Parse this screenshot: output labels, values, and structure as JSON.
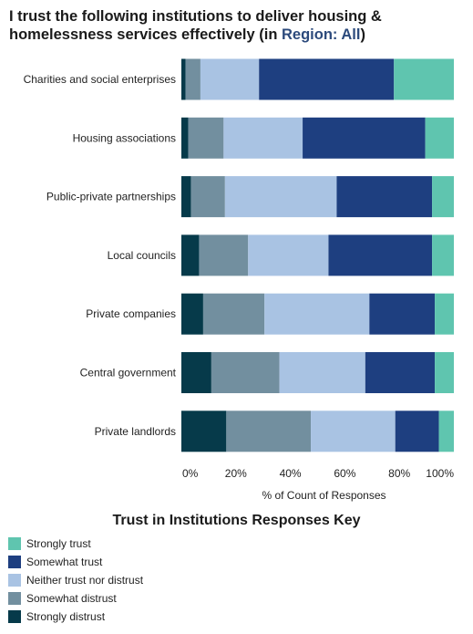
{
  "title": {
    "line1": "I trust the following institutions to deliver housing &",
    "line2_prefix": "homelessness services effectively (in ",
    "line2_region": "Region: All",
    "line2_suffix": ")"
  },
  "chart_data": {
    "type": "bar",
    "orientation": "horizontal",
    "stacked": "100%",
    "xlabel": "% of Count of Responses",
    "xlim": [
      0,
      100
    ],
    "x_ticks": [
      "0%",
      "20%",
      "40%",
      "60%",
      "80%",
      "100%"
    ],
    "categories": [
      "Charities and social enterprises",
      "Housing associations",
      "Public-private partnerships",
      "Local councils",
      "Private companies",
      "Central government",
      "Private landlords"
    ],
    "series": [
      {
        "name": "Strongly distrust",
        "color": "#063a4a",
        "values": [
          1.5,
          2.5,
          3.5,
          6.5,
          8.0,
          11.0,
          16.5
        ]
      },
      {
        "name": "Somewhat distrust",
        "color": "#728f9f",
        "values": [
          5.5,
          13.0,
          12.5,
          18.0,
          22.5,
          25.0,
          31.0
        ]
      },
      {
        "name": "Neither trust nor distrust",
        "color": "#a9c3e3",
        "values": [
          21.5,
          29.0,
          41.0,
          29.5,
          38.5,
          31.5,
          31.0
        ]
      },
      {
        "name": "Somewhat trust",
        "color": "#1e3f80",
        "values": [
          49.5,
          45.0,
          35.0,
          38.0,
          24.0,
          25.5,
          16.0
        ]
      },
      {
        "name": "Strongly trust",
        "color": "#5fc5af",
        "values": [
          22.0,
          10.5,
          8.0,
          8.0,
          7.0,
          7.0,
          5.5
        ]
      }
    ],
    "grid": false
  },
  "legend": {
    "title": "Trust in Institutions Responses Key",
    "items": [
      {
        "label": "Strongly trust",
        "color": "#5fc5af"
      },
      {
        "label": "Somewhat trust",
        "color": "#1e3f80"
      },
      {
        "label": "Neither trust nor distrust",
        "color": "#a9c3e3"
      },
      {
        "label": "Somewhat distrust",
        "color": "#728f9f"
      },
      {
        "label": "Strongly distrust",
        "color": "#063a4a"
      }
    ]
  }
}
